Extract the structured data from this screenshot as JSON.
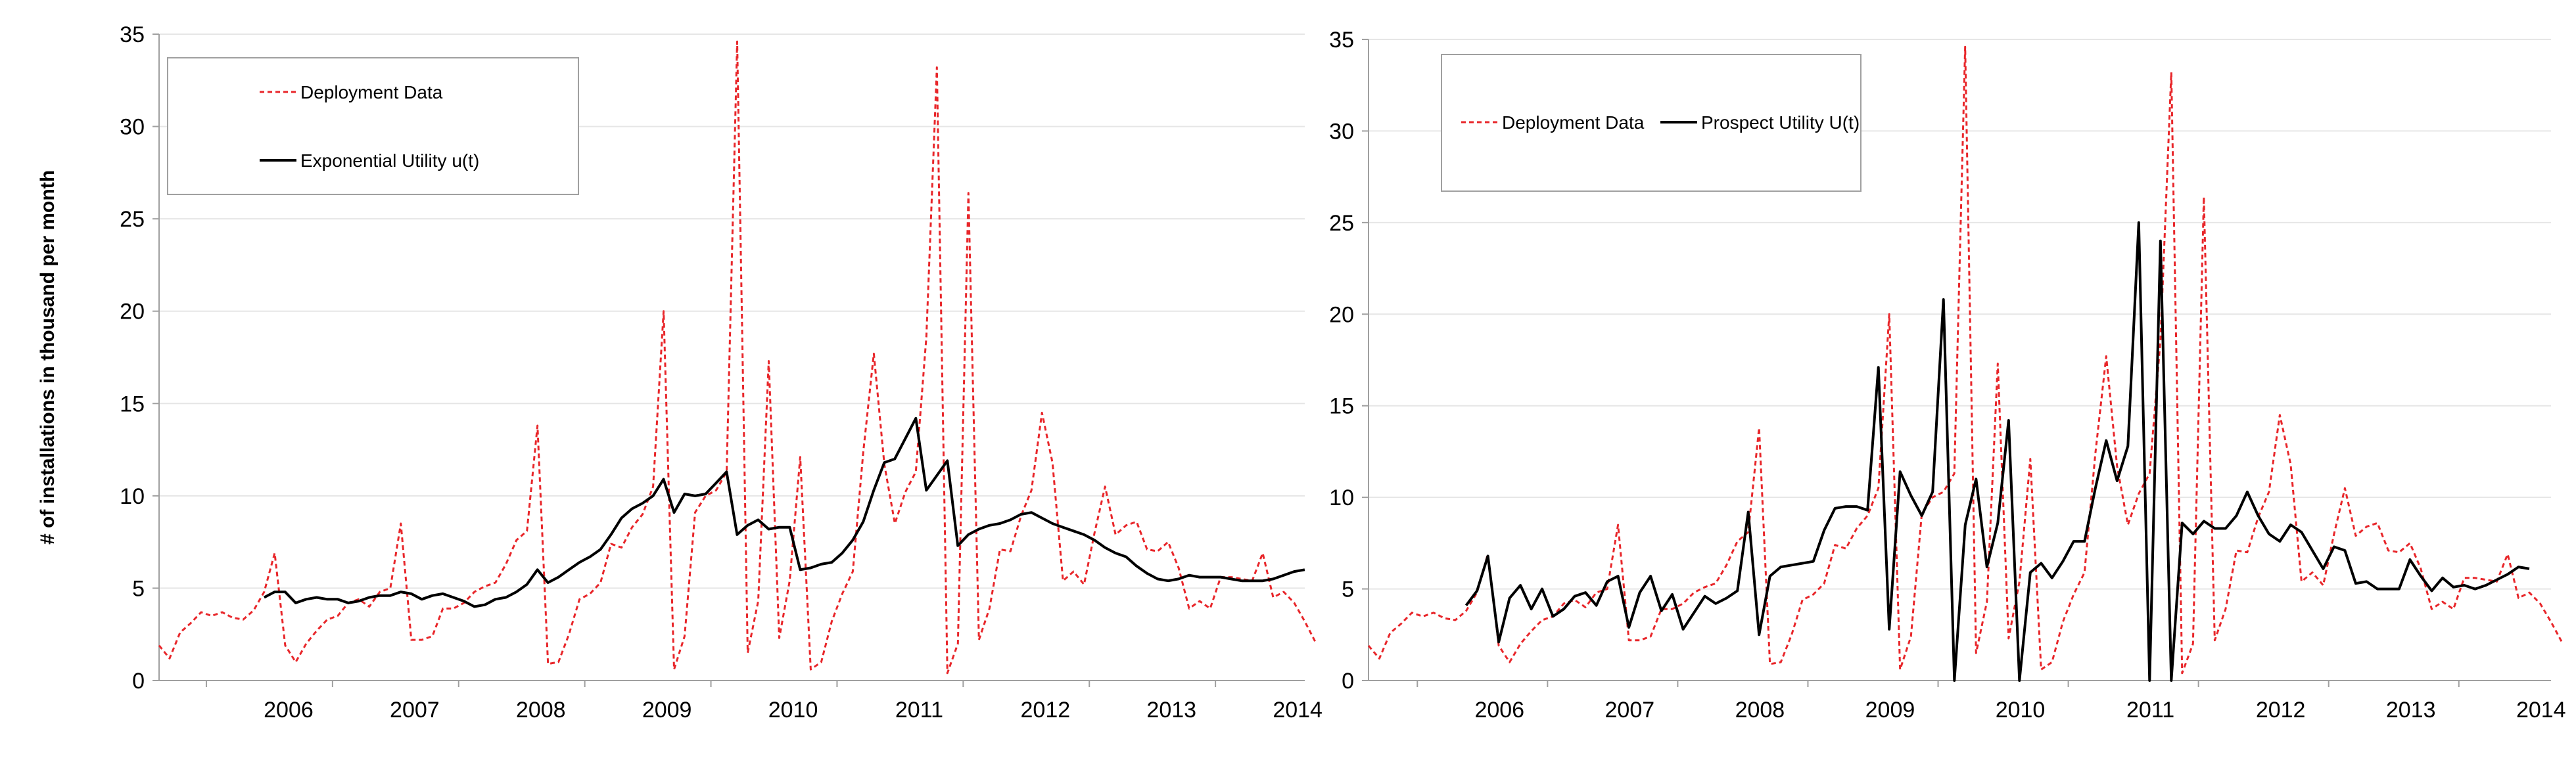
{
  "chart_data": [
    {
      "type": "line",
      "ylabel": "# of installations in thousand per month",
      "xlabel": "",
      "ylim": [
        0,
        35
      ],
      "yticks": [
        0,
        5,
        10,
        15,
        20,
        25,
        30,
        35
      ],
      "xlim": [
        2005.625,
        2014.708
      ],
      "xticks": [
        {
          "label": "2006",
          "x": 2006.0
        },
        {
          "label": "2007",
          "x": 2007.0
        },
        {
          "label": "2008",
          "x": 2008.0
        },
        {
          "label": "2009",
          "x": 2009.0
        },
        {
          "label": "2010",
          "x": 2010.0
        },
        {
          "label": "2011",
          "x": 2011.0
        },
        {
          "label": "2012",
          "x": 2012.0
        },
        {
          "label": "2013",
          "x": 2013.0
        },
        {
          "label": "2014",
          "x": 2014.0
        }
      ],
      "grid": true,
      "legend_position": "top-left",
      "series": [
        {
          "name": "Deployment Data",
          "color": "#e8262a",
          "style": "dashed",
          "x_start": 2005.625,
          "x_step": 0.08333,
          "values": [
            1.9,
            1.2,
            2.6,
            3.1,
            3.7,
            3.5,
            3.7,
            3.4,
            3.3,
            3.8,
            4.8,
            6.9,
            1.9,
            1.0,
            2.0,
            2.7,
            3.3,
            3.5,
            4.2,
            4.4,
            4.0,
            4.8,
            5.0,
            8.5,
            2.2,
            2.2,
            2.4,
            3.9,
            3.9,
            4.2,
            4.8,
            5.1,
            5.3,
            6.3,
            7.6,
            8.1,
            13.8,
            0.9,
            1.0,
            2.5,
            4.4,
            4.7,
            5.3,
            7.4,
            7.2,
            8.3,
            9.0,
            10.5,
            20.0,
            0.6,
            2.4,
            9.1,
            10.0,
            10.3,
            11.3,
            34.6,
            1.5,
            4.3,
            17.3,
            2.3,
            5.4,
            12.1,
            0.6,
            1.0,
            3.2,
            4.7,
            5.9,
            12.4,
            17.7,
            11.7,
            8.5,
            10.2,
            11.3,
            18.6,
            33.2,
            0.4,
            2.0,
            26.4,
            2.2,
            3.9,
            7.1,
            7.0,
            8.9,
            10.3,
            14.5,
            11.8,
            5.4,
            5.9,
            5.2,
            8.0,
            10.5,
            7.9,
            8.4,
            8.6,
            7.1,
            7.0,
            7.5,
            6.1,
            3.9,
            4.3,
            3.9,
            5.6,
            5.6,
            5.5,
            5.4,
            6.9,
            4.5,
            4.8,
            4.2,
            3.2,
            2.1
          ]
        },
        {
          "name": "Exponential Utility u(t)",
          "color": "#000000",
          "style": "solid",
          "x_start": 2006.458,
          "x_step": 0.08333,
          "values": [
            4.5,
            4.8,
            4.8,
            4.2,
            4.4,
            4.5,
            4.4,
            4.4,
            4.2,
            4.3,
            4.5,
            4.6,
            4.6,
            4.8,
            4.7,
            4.4,
            4.6,
            4.7,
            4.5,
            4.3,
            4.0,
            4.1,
            4.4,
            4.5,
            4.8,
            5.2,
            6.0,
            5.3,
            5.6,
            6.0,
            6.4,
            6.7,
            7.1,
            7.9,
            8.8,
            9.3,
            9.6,
            10.0,
            10.9,
            9.1,
            10.1,
            10.0,
            10.1,
            10.7,
            11.3,
            7.9,
            8.4,
            8.7,
            8.2,
            8.3,
            8.3,
            6.0,
            6.1,
            6.3,
            6.4,
            6.9,
            7.6,
            8.6,
            10.3,
            11.8,
            12.0,
            13.1,
            14.2,
            10.3,
            11.1,
            11.9,
            7.3,
            7.9,
            8.2,
            8.4,
            8.5,
            8.7,
            9.0,
            9.1,
            8.8,
            8.5,
            8.3,
            8.1,
            7.9,
            7.6,
            7.2,
            6.9,
            6.7,
            6.2,
            5.8,
            5.5,
            5.4,
            5.5,
            5.7,
            5.6,
            5.6,
            5.6,
            5.5,
            5.4,
            5.4,
            5.4,
            5.5,
            5.7,
            5.9,
            6.0
          ]
        }
      ]
    },
    {
      "type": "line",
      "ylabel": "",
      "xlabel": "",
      "ylim": [
        0,
        35
      ],
      "yticks": [
        0,
        5,
        10,
        15,
        20,
        25,
        30,
        35
      ],
      "xlim": [
        2005.625,
        2014.708
      ],
      "xticks": [
        {
          "label": "2006",
          "x": 2006.0
        },
        {
          "label": "2007",
          "x": 2007.0
        },
        {
          "label": "2008",
          "x": 2008.0
        },
        {
          "label": "2009",
          "x": 2009.0
        },
        {
          "label": "2010",
          "x": 2010.0
        },
        {
          "label": "2011",
          "x": 2011.0
        },
        {
          "label": "2012",
          "x": 2012.0
        },
        {
          "label": "2013",
          "x": 2013.0
        },
        {
          "label": "2014",
          "x": 2014.0
        }
      ],
      "grid": true,
      "legend_position": "top-left",
      "series": [
        {
          "name": "Deployment Data",
          "color": "#e8262a",
          "style": "dashed",
          "x_start": 2005.625,
          "x_step": 0.08333,
          "values": [
            1.9,
            1.2,
            2.6,
            3.1,
            3.7,
            3.5,
            3.7,
            3.4,
            3.3,
            3.8,
            4.8,
            6.9,
            1.9,
            1.0,
            2.0,
            2.7,
            3.3,
            3.5,
            4.2,
            4.4,
            4.0,
            4.8,
            5.0,
            8.5,
            2.2,
            2.2,
            2.4,
            3.9,
            3.9,
            4.2,
            4.8,
            5.1,
            5.3,
            6.3,
            7.6,
            8.1,
            13.8,
            0.9,
            1.0,
            2.5,
            4.4,
            4.7,
            5.3,
            7.4,
            7.2,
            8.3,
            9.0,
            10.5,
            20.0,
            0.6,
            2.4,
            9.1,
            10.0,
            10.3,
            11.3,
            34.6,
            1.5,
            4.3,
            17.3,
            2.3,
            5.4,
            12.1,
            0.6,
            1.0,
            3.2,
            4.7,
            5.9,
            12.4,
            17.7,
            11.7,
            8.5,
            10.2,
            11.3,
            18.6,
            33.2,
            0.4,
            2.0,
            26.4,
            2.2,
            3.9,
            7.1,
            7.0,
            8.9,
            10.3,
            14.5,
            11.8,
            5.4,
            5.9,
            5.2,
            8.0,
            10.5,
            7.9,
            8.4,
            8.6,
            7.1,
            7.0,
            7.5,
            6.1,
            3.9,
            4.3,
            3.9,
            5.6,
            5.6,
            5.5,
            5.4,
            6.9,
            4.5,
            4.8,
            4.2,
            3.2,
            2.1
          ]
        },
        {
          "name": "Prospect Utility U(t)",
          "color": "#000000",
          "style": "solid",
          "x_start": 2006.375,
          "x_step": 0.08333,
          "values": [
            4.1,
            4.9,
            6.8,
            2.1,
            4.5,
            5.2,
            3.9,
            5.0,
            3.5,
            3.9,
            4.6,
            4.8,
            4.1,
            5.4,
            5.7,
            2.9,
            4.8,
            5.7,
            3.8,
            4.7,
            2.8,
            3.7,
            4.6,
            4.2,
            4.5,
            4.9,
            9.2,
            2.5,
            5.7,
            6.2,
            6.3,
            6.4,
            6.5,
            8.2,
            9.4,
            9.5,
            9.5,
            9.3,
            17.1,
            2.8,
            11.4,
            10.1,
            9.0,
            10.3,
            20.8,
            0.0,
            8.5,
            11.0,
            6.2,
            8.6,
            14.2,
            0.0,
            5.9,
            6.4,
            5.6,
            6.5,
            7.6,
            7.6,
            10.5,
            13.1,
            10.9,
            12.8,
            25.0,
            0.0,
            24.0,
            0.0,
            8.6,
            8.0,
            8.7,
            8.3,
            8.3,
            9.0,
            10.3,
            9.0,
            8.0,
            7.6,
            8.5,
            8.1,
            7.1,
            6.1,
            7.3,
            7.1,
            5.3,
            5.4,
            5.0,
            5.0,
            5.0,
            6.6,
            5.7,
            4.9,
            5.6,
            5.1,
            5.2,
            5.0,
            5.2,
            5.5,
            5.8,
            6.2,
            6.1
          ]
        }
      ]
    }
  ]
}
